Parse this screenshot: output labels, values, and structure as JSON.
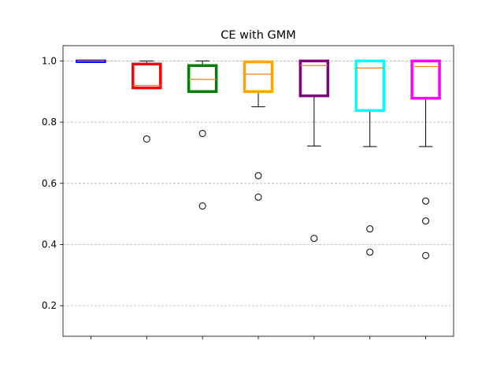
{
  "chart_data": {
    "type": "box",
    "title": "CE with GMM",
    "xlabel": "",
    "ylabel": "",
    "ylim": [
      0.1,
      1.05
    ],
    "yticks": [
      "0.2",
      "0.4",
      "0.6",
      "0.8",
      "1.0"
    ],
    "grid": "horizontal dashed",
    "x_tick_labels": [],
    "colors": {
      "median": "#ff7f0e",
      "whisker": "#000000",
      "grid": "#b0b0b0"
    },
    "boxes": [
      {
        "color": "#0000ff",
        "whislo": 0.998,
        "q1": 0.998,
        "med": 1.0,
        "q3": 1.0,
        "whishi": 1.0,
        "fliers": []
      },
      {
        "color": "#ff0000",
        "whislo": 0.91,
        "q1": 0.912,
        "med": 0.92,
        "q3": 0.99,
        "whishi": 1.0,
        "fliers": [
          0.745
        ]
      },
      {
        "color": "#008000",
        "whislo": 0.9,
        "q1": 0.9,
        "med": 0.94,
        "q3": 0.985,
        "whishi": 1.0,
        "fliers": [
          0.763,
          0.526
        ]
      },
      {
        "color": "#ffa500",
        "whislo": 0.85,
        "q1": 0.9,
        "med": 0.957,
        "q3": 0.997,
        "whishi": 1.0,
        "fliers": [
          0.625,
          0.555
        ]
      },
      {
        "color": "#800080",
        "whislo": 0.722,
        "q1": 0.886,
        "med": 0.985,
        "q3": 1.0,
        "whishi": 1.0,
        "fliers": [
          0.42
        ]
      },
      {
        "color": "#00ffff",
        "whislo": 0.72,
        "q1": 0.838,
        "med": 0.977,
        "q3": 1.0,
        "whishi": 1.0,
        "fliers": [
          0.451,
          0.375
        ]
      },
      {
        "color": "#ff00ff",
        "whislo": 0.72,
        "q1": 0.878,
        "med": 0.982,
        "q3": 1.0,
        "whishi": 1.0,
        "fliers": [
          0.542,
          0.477,
          0.364
        ]
      }
    ]
  }
}
